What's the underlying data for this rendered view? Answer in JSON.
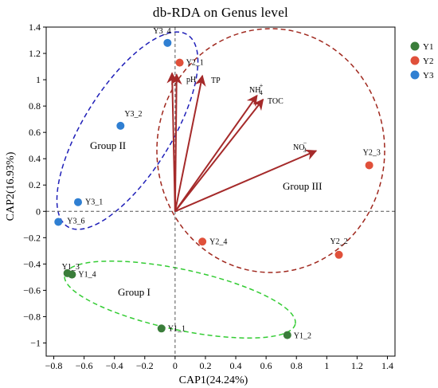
{
  "chart_data": {
    "type": "scatter",
    "title": "db-RDA on Genus level",
    "xlabel": "CAP1(24.24%)",
    "ylabel": "CAP2(16.93%)",
    "xlim": [
      -0.85,
      1.45
    ],
    "ylim": [
      -1.1,
      1.4
    ],
    "x_ticks": [
      -0.8,
      -0.6,
      -0.4,
      -0.2,
      0,
      0.2,
      0.4,
      0.6,
      0.8,
      1,
      1.2,
      1.4
    ],
    "y_ticks": [
      -1,
      -0.8,
      -0.6,
      -0.4,
      -0.2,
      0,
      0.2,
      0.4,
      0.6,
      0.8,
      1,
      1.2,
      1.4
    ],
    "x_tick_labels": [
      "−0.8",
      "−0.6",
      "−0.4",
      "−0.2",
      "0",
      "0.2",
      "0.4",
      "0.6",
      "0.8",
      "1",
      "1.2",
      "1.4"
    ],
    "y_tick_labels": [
      "−1",
      "−0.8",
      "−0.6",
      "−0.4",
      "−0.2",
      "0",
      "0.2",
      "0.4",
      "0.6",
      "0.8",
      "1",
      "1.2",
      "1.4"
    ],
    "grid": false,
    "zero_lines": "dashed",
    "legend_position": "right",
    "series": [
      {
        "name": "Y1",
        "color": "#3a7d3a",
        "points": [
          {
            "label": "Y1_1",
            "x": -0.09,
            "y": -0.89
          },
          {
            "label": "Y1_2",
            "x": 0.74,
            "y": -0.94
          },
          {
            "label": "Y1_3",
            "x": -0.71,
            "y": -0.47
          },
          {
            "label": "Y1_4",
            "x": -0.68,
            "y": -0.48
          }
        ]
      },
      {
        "name": "Y2",
        "color": "#e0503a",
        "points": [
          {
            "label": "Y2_1",
            "x": 0.03,
            "y": 1.13
          },
          {
            "label": "Y2_2",
            "x": 1.08,
            "y": -0.33
          },
          {
            "label": "Y2_3",
            "x": 1.28,
            "y": 0.35
          },
          {
            "label": "Y2_4",
            "x": 0.18,
            "y": -0.23
          }
        ]
      },
      {
        "name": "Y3",
        "color": "#2f7fd2",
        "points": [
          {
            "label": "Y3_4",
            "x": -0.05,
            "y": 1.28
          },
          {
            "label": "Y3_2",
            "x": -0.36,
            "y": 0.65
          },
          {
            "label": "Y3_1",
            "x": -0.64,
            "y": 0.07
          },
          {
            "label": "Y3_6",
            "x": -0.77,
            "y": -0.08
          }
        ]
      }
    ],
    "vectors": [
      {
        "label": "pH",
        "x": -0.02,
        "y": 1.05
      },
      {
        "label": "pH",
        "x": 0.01,
        "y": 1.04
      },
      {
        "label": "TP",
        "x": 0.18,
        "y": 1.03
      },
      {
        "label": "NH4+",
        "x": 0.54,
        "y": 0.88
      },
      {
        "label": "TOC",
        "x": 0.58,
        "y": 0.85
      },
      {
        "label": "NO3−",
        "x": 0.93,
        "y": 0.46
      }
    ],
    "vector_text": [
      {
        "name": "pH",
        "base": "pH",
        "sup": "",
        "sub": ""
      },
      {
        "name": "TP",
        "base": "TP",
        "sup": "",
        "sub": ""
      },
      {
        "name": "NH4",
        "base": "NH",
        "sup": "+",
        "sub": "4"
      },
      {
        "name": "TOC",
        "base": "TOC",
        "sup": "",
        "sub": ""
      },
      {
        "name": "NO3",
        "base": "NO",
        "sup": "−",
        "sub": "3"
      }
    ],
    "vector_color": "#a52a2a",
    "groups": [
      {
        "label": "Group I",
        "color": "#33cc33"
      },
      {
        "label": "Group II",
        "color": "#1f1fb8"
      },
      {
        "label": "Group III",
        "color": "#a0281e"
      }
    ]
  }
}
